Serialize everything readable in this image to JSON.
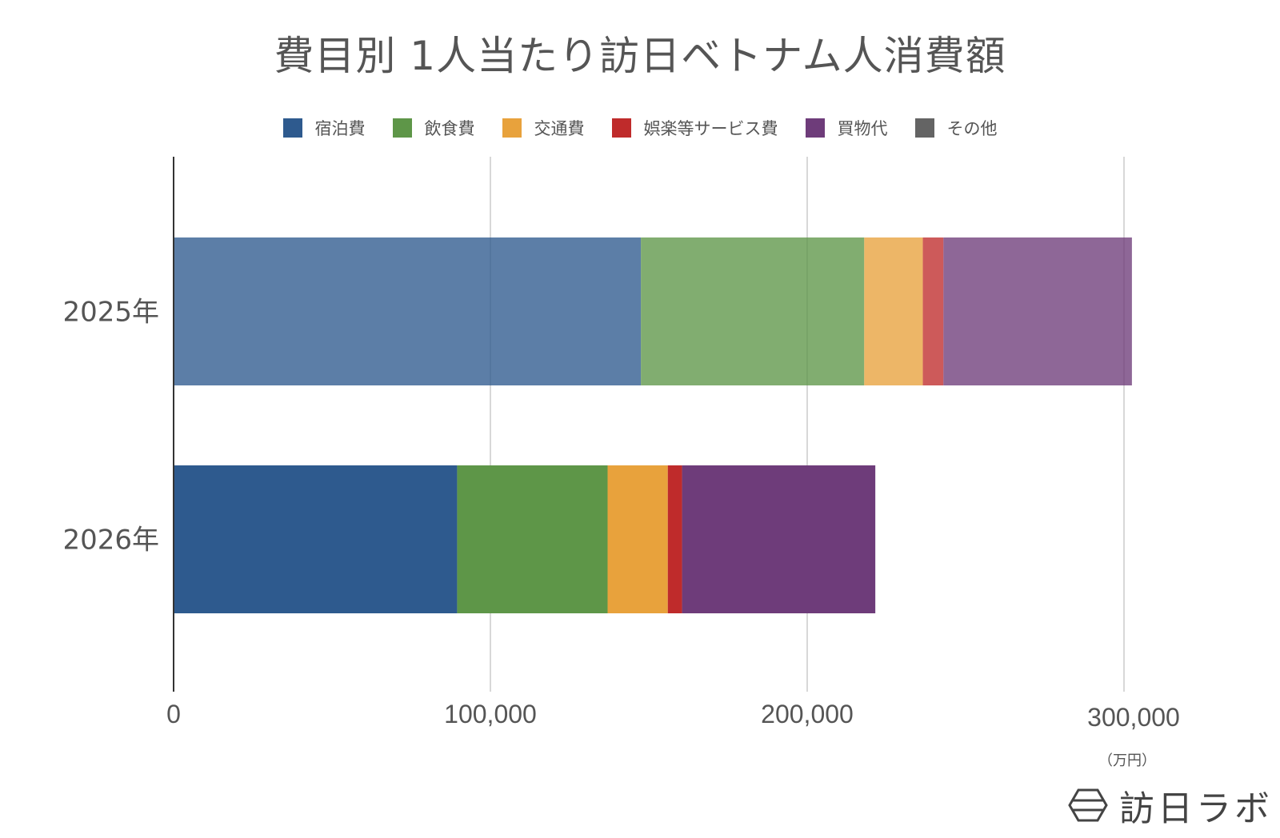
{
  "chart_data": {
    "type": "bar",
    "orientation": "horizontal",
    "stacked": true,
    "title": "費目別 1人当たり訪日ベトナム人消費額",
    "categories": [
      "2025年",
      "2026年"
    ],
    "series": [
      {
        "name": "宿泊費",
        "color": "#2e5a8e",
        "values": [
          147500,
          89500
        ]
      },
      {
        "name": "飲食費",
        "color": "#5e9648",
        "values": [
          70500,
          47500
        ]
      },
      {
        "name": "交通費",
        "color": "#e8a23c",
        "values": [
          18500,
          19000
        ]
      },
      {
        "name": "娯楽等サービス費",
        "color": "#bf2b2b",
        "values": [
          6500,
          4500
        ]
      },
      {
        "name": "買物代",
        "color": "#6e3c7a",
        "values": [
          59500,
          61000
        ]
      },
      {
        "name": "その他",
        "color": "#646464",
        "values": [
          0,
          0
        ]
      }
    ],
    "highlight_category": "2026年",
    "faded_opacity": 0.78,
    "xlim": [
      0,
      300000
    ],
    "x_ticks": [
      "0",
      "100,000",
      "200,000",
      "300,000"
    ],
    "x_tick_values": [
      0,
      100000,
      200000,
      300000
    ],
    "x_unit": "（万円）",
    "grid": true,
    "legend_position": "top"
  },
  "brand": {
    "name": "訪日ラボ",
    "icon": "hexagon-logo-icon"
  }
}
